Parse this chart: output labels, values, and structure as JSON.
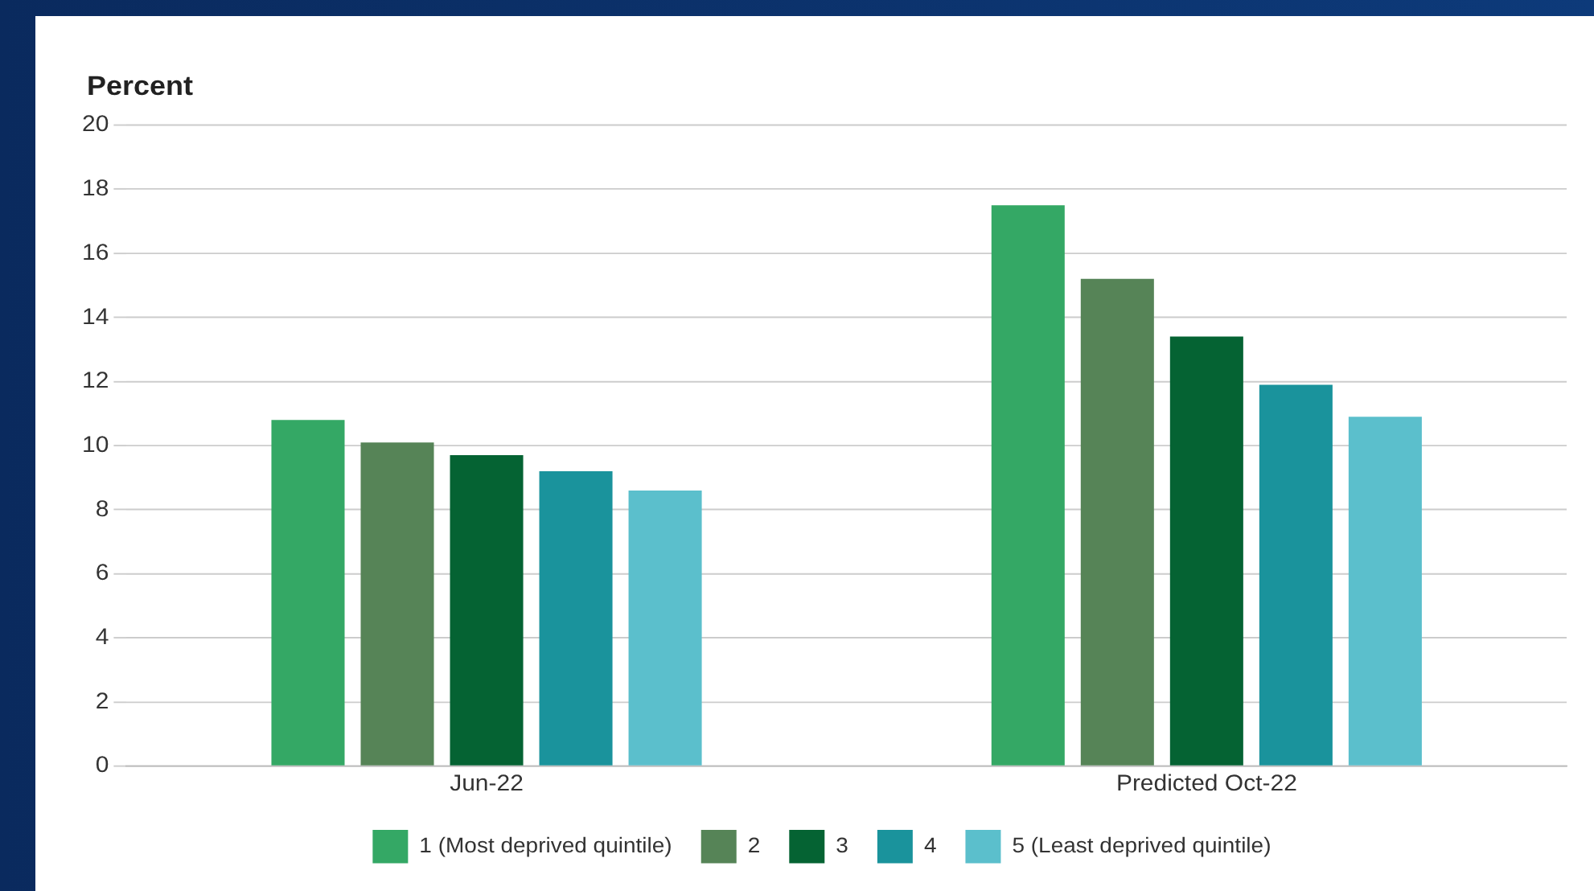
{
  "chart_data": {
    "type": "bar",
    "ylabel": "Percent",
    "categories": [
      "Jun-22",
      "Predicted Oct-22"
    ],
    "series": [
      {
        "name": "1 (Most deprived quintile)",
        "color": "#34a865",
        "values": [
          10.8,
          17.5
        ]
      },
      {
        "name": "2",
        "color": "#568457",
        "values": [
          10.1,
          15.2
        ]
      },
      {
        "name": "3",
        "color": "#056333",
        "values": [
          9.7,
          13.4
        ]
      },
      {
        "name": "4",
        "color": "#1a939c",
        "values": [
          9.2,
          11.9
        ]
      },
      {
        "name": "5 (Least deprived quintile)",
        "color": "#5bbfcc",
        "values": [
          8.6,
          10.9
        ]
      }
    ],
    "ylim": [
      0,
      20
    ],
    "yticks": [
      0,
      2,
      4,
      6,
      8,
      10,
      12,
      14,
      16,
      18,
      20
    ],
    "grid": "y",
    "legend": "bottom"
  }
}
